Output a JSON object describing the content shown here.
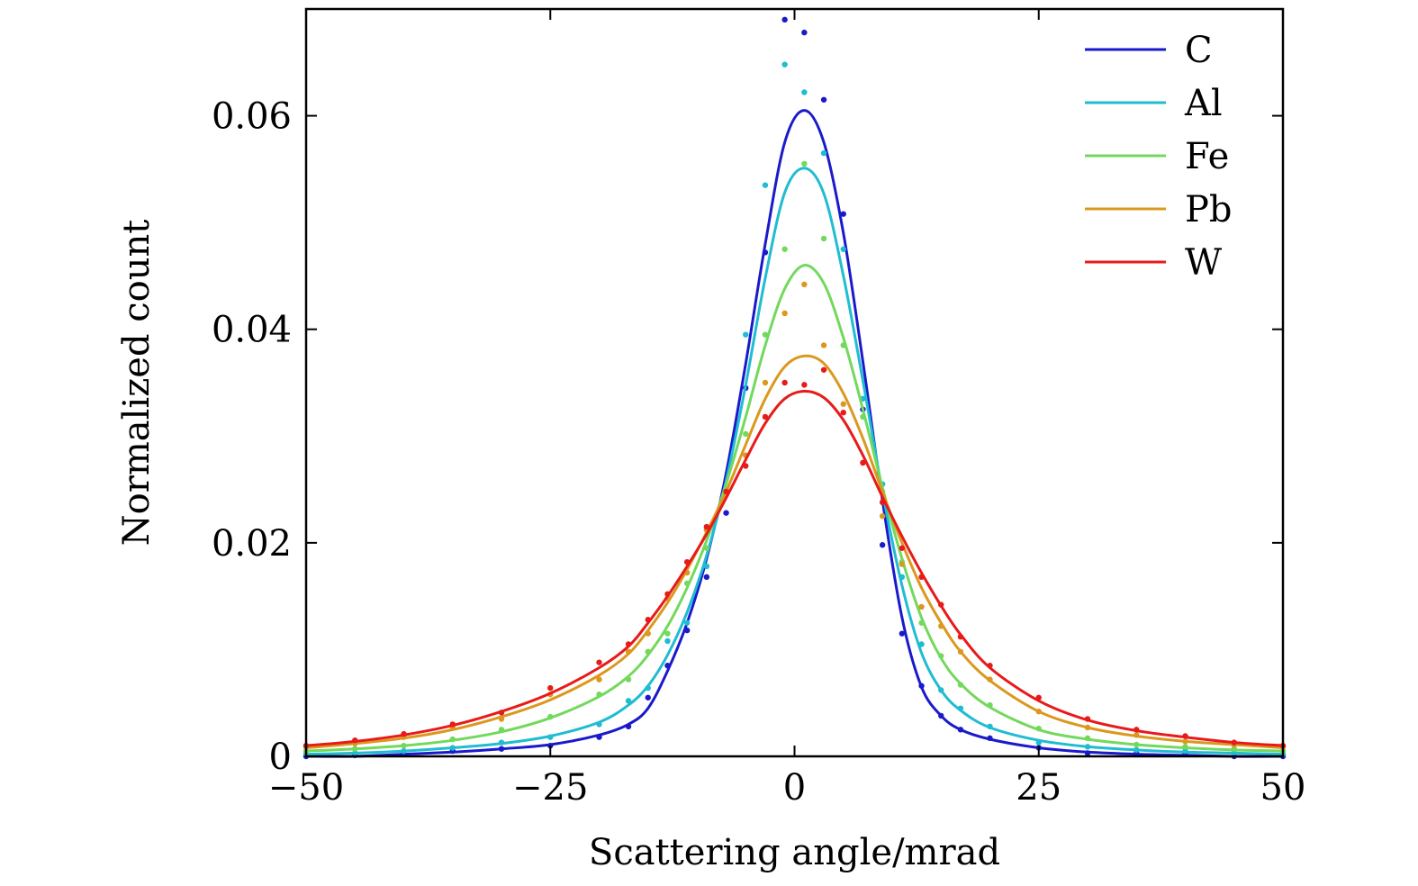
{
  "chart_data": {
    "type": "line",
    "title": "",
    "xlabel": "Scattering angle/mrad",
    "ylabel": "Normalized count",
    "xlim": [
      -50,
      50
    ],
    "ylim": [
      0,
      0.07
    ],
    "xticks": [
      -50,
      -25,
      0,
      25,
      50
    ],
    "xtick_labels": [
      "−50",
      "−25",
      "0",
      "25",
      "50"
    ],
    "yticks": [
      0,
      0.02,
      0.04,
      0.06
    ],
    "ytick_labels": [
      "0",
      "0.02",
      "0.04",
      "0.06"
    ],
    "grid": false,
    "legend_position": "top-right",
    "x": [
      -50,
      -45,
      -40,
      -35,
      -30,
      -25,
      -20,
      -17,
      -15,
      -13,
      -11,
      -9,
      -7,
      -5,
      -3,
      -1,
      1,
      3,
      5,
      7,
      9,
      11,
      13,
      15,
      17,
      20,
      25,
      30,
      35,
      40,
      45,
      50
    ],
    "series": [
      {
        "name": "C",
        "color": "#1a1acc",
        "fit": [
          0.0,
          0.0,
          0.0002,
          0.0004,
          0.0007,
          0.0011,
          0.002,
          0.003,
          0.0045,
          0.008,
          0.0125,
          0.0185,
          0.0265,
          0.0368,
          0.048,
          0.0575,
          0.0605,
          0.0575,
          0.049,
          0.037,
          0.024,
          0.013,
          0.0065,
          0.0038,
          0.0025,
          0.0016,
          0.0008,
          0.0004,
          0.0002,
          0.0001,
          0.0,
          0.0
        ],
        "points": [
          0.0,
          0.0001,
          0.0002,
          0.0005,
          0.0007,
          0.001,
          0.0018,
          0.0028,
          0.0055,
          0.0085,
          0.0118,
          0.0168,
          0.0228,
          0.0345,
          0.0472,
          0.069,
          0.0678,
          0.0615,
          0.0508,
          0.0325,
          0.0198,
          0.0115,
          0.0066,
          0.0038,
          0.0025,
          0.0017,
          0.0008,
          0.0003,
          0.0003,
          0.0002,
          0.0,
          0.0
        ]
      },
      {
        "name": "Al",
        "color": "#1fbcd2",
        "fit": [
          0.0002,
          0.0003,
          0.0005,
          0.0008,
          0.0012,
          0.0019,
          0.0032,
          0.0048,
          0.0066,
          0.0095,
          0.0135,
          0.0188,
          0.0258,
          0.0348,
          0.0448,
          0.0528,
          0.0551,
          0.0527,
          0.045,
          0.0352,
          0.0248,
          0.016,
          0.0097,
          0.0062,
          0.0043,
          0.0027,
          0.0015,
          0.0009,
          0.0006,
          0.0004,
          0.0003,
          0.0002
        ],
        "points": [
          0.0003,
          0.0003,
          0.0005,
          0.0008,
          0.0013,
          0.0018,
          0.003,
          0.0052,
          0.0064,
          0.0108,
          0.0125,
          0.0178,
          0.0248,
          0.0395,
          0.0535,
          0.0648,
          0.0622,
          0.0565,
          0.0475,
          0.0335,
          0.0255,
          0.0168,
          0.0105,
          0.0062,
          0.0045,
          0.0028,
          0.0013,
          0.0009,
          0.0006,
          0.0005,
          0.0003,
          0.0002
        ]
      },
      {
        "name": "Fe",
        "color": "#72d95c",
        "fit": [
          0.0005,
          0.0007,
          0.001,
          0.0015,
          0.0023,
          0.0036,
          0.0056,
          0.0075,
          0.0095,
          0.0122,
          0.0158,
          0.0202,
          0.0255,
          0.0318,
          0.0385,
          0.0438,
          0.046,
          0.0443,
          0.0392,
          0.0325,
          0.0252,
          0.0185,
          0.013,
          0.0092,
          0.0068,
          0.0046,
          0.0025,
          0.0016,
          0.0011,
          0.0008,
          0.0006,
          0.0005
        ],
        "points": [
          0.0005,
          0.0007,
          0.001,
          0.0016,
          0.0025,
          0.0037,
          0.0058,
          0.0072,
          0.0098,
          0.0115,
          0.0162,
          0.0195,
          0.025,
          0.0302,
          0.0395,
          0.0475,
          0.0555,
          0.0485,
          0.0385,
          0.0318,
          0.0248,
          0.0182,
          0.0125,
          0.0094,
          0.0067,
          0.0048,
          0.0026,
          0.0017,
          0.0011,
          0.0009,
          0.0007,
          0.0005
        ]
      },
      {
        "name": "Pb",
        "color": "#db981e",
        "fit": [
          0.0008,
          0.0012,
          0.0017,
          0.0025,
          0.0037,
          0.0053,
          0.0076,
          0.0096,
          0.0118,
          0.0144,
          0.0175,
          0.021,
          0.0248,
          0.0292,
          0.0335,
          0.0365,
          0.0375,
          0.0368,
          0.034,
          0.0298,
          0.0248,
          0.02,
          0.0158,
          0.0125,
          0.0098,
          0.0071,
          0.0042,
          0.0027,
          0.0019,
          0.0014,
          0.0011,
          0.0008
        ],
        "points": [
          0.0009,
          0.0012,
          0.0018,
          0.0027,
          0.0035,
          0.0058,
          0.0072,
          0.0098,
          0.0115,
          0.0148,
          0.0172,
          0.0212,
          0.0245,
          0.0282,
          0.035,
          0.0415,
          0.0442,
          0.0385,
          0.033,
          0.0275,
          0.0225,
          0.018,
          0.014,
          0.0122,
          0.0098,
          0.0072,
          0.0042,
          0.0027,
          0.002,
          0.0014,
          0.0011,
          0.0009
        ]
      },
      {
        "name": "W",
        "color": "#e81a1a",
        "fit": [
          0.001,
          0.0014,
          0.002,
          0.0029,
          0.0042,
          0.0059,
          0.0083,
          0.0103,
          0.0125,
          0.015,
          0.0178,
          0.0208,
          0.0242,
          0.0278,
          0.0312,
          0.0335,
          0.0342,
          0.0336,
          0.0315,
          0.0282,
          0.0243,
          0.0206,
          0.0172,
          0.0141,
          0.0114,
          0.0083,
          0.0052,
          0.0034,
          0.0024,
          0.0018,
          0.0013,
          0.001
        ],
        "points": [
          0.001,
          0.0015,
          0.0021,
          0.003,
          0.0041,
          0.0064,
          0.0088,
          0.0105,
          0.0128,
          0.0152,
          0.0182,
          0.0215,
          0.0248,
          0.0272,
          0.0318,
          0.035,
          0.0348,
          0.0362,
          0.0322,
          0.0275,
          0.0238,
          0.0195,
          0.0168,
          0.0142,
          0.0112,
          0.0085,
          0.0055,
          0.0035,
          0.0025,
          0.0019,
          0.0013,
          0.001
        ]
      }
    ]
  }
}
